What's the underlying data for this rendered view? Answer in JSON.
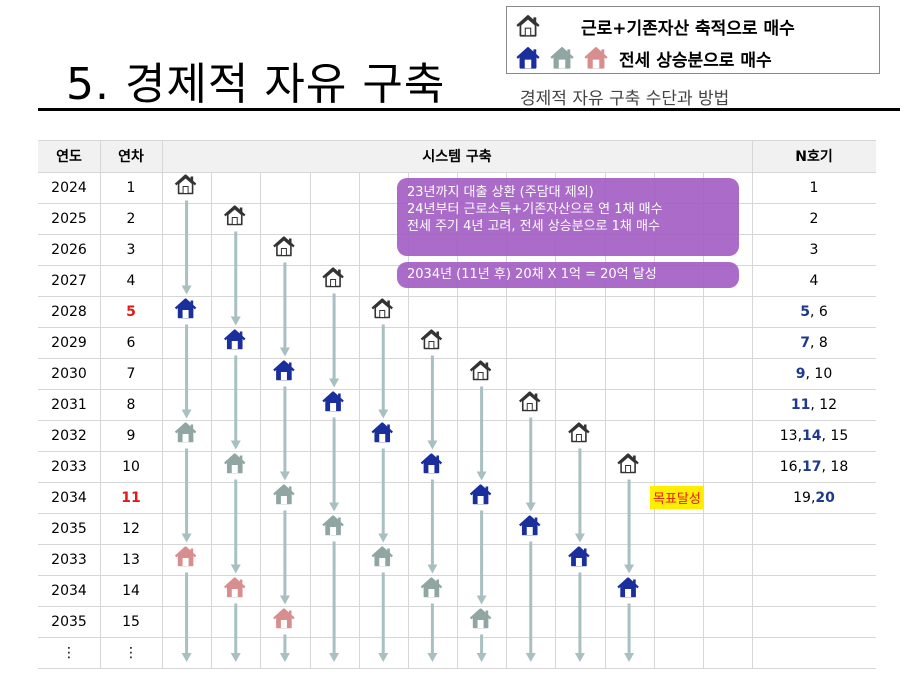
{
  "title": "5. 경제적 자유 구축",
  "subtitle": "경제적 자유 구축 수단과 방법",
  "legend": {
    "row1_text": "근로+기존자산 축적으로 매수",
    "row2_text": "전세 상승분으로 매수",
    "row1_icons": [
      "house-outline-icon"
    ],
    "row2_icons": [
      "house-blue-icon",
      "house-gray-icon",
      "house-pink-icon"
    ]
  },
  "headers": {
    "year": "연도",
    "seq": "연차",
    "system": "시스템 구축",
    "n": "N호기"
  },
  "rows": [
    {
      "year": "2024",
      "seq": "1",
      "n_pre": "",
      "n_bold": "",
      "n_post": "1"
    },
    {
      "year": "2025",
      "seq": "2",
      "n_pre": "",
      "n_bold": "",
      "n_post": "2"
    },
    {
      "year": "2026",
      "seq": "3",
      "n_pre": "",
      "n_bold": "",
      "n_post": "3"
    },
    {
      "year": "2027",
      "seq": "4",
      "n_pre": "",
      "n_bold": "",
      "n_post": "4"
    },
    {
      "year": "2028",
      "seq": "5",
      "n_pre": "",
      "n_bold": "5",
      "n_post": ", 6"
    },
    {
      "year": "2029",
      "seq": "6",
      "n_pre": "",
      "n_bold": "7",
      "n_post": ", 8"
    },
    {
      "year": "2030",
      "seq": "7",
      "n_pre": "",
      "n_bold": "9",
      "n_post": ", 10"
    },
    {
      "year": "2031",
      "seq": "8",
      "n_pre": "",
      "n_bold": "11",
      "n_post": ", 12"
    },
    {
      "year": "2032",
      "seq": "9",
      "n_pre": "13, ",
      "n_bold": "14",
      "n_post": ", 15"
    },
    {
      "year": "2033",
      "seq": "10",
      "n_pre": "16, ",
      "n_bold": "17",
      "n_post": ", 18"
    },
    {
      "year": "2034",
      "seq": "11",
      "n_pre": "19, ",
      "n_bold": "20",
      "n_post": ""
    },
    {
      "year": "2035",
      "seq": "12",
      "n_pre": "",
      "n_bold": "",
      "n_post": ""
    },
    {
      "year": "2033",
      "seq": "13",
      "n_pre": "",
      "n_bold": "",
      "n_post": ""
    },
    {
      "year": "2034",
      "seq": "14",
      "n_pre": "",
      "n_bold": "",
      "n_post": ""
    },
    {
      "year": "2035",
      "seq": "15",
      "n_pre": "",
      "n_bold": "",
      "n_post": ""
    },
    {
      "year": "⋮",
      "seq": "⋮",
      "n_pre": "",
      "n_bold": "",
      "n_post": ""
    }
  ],
  "highlight_seq_rows": [
    4,
    10
  ],
  "bubble1_lines": [
    "23년까지 대출 상환 (주담대 제외)",
    "24년부터 근로소득+기존자산으로 연 1채 매수",
    "전세 주기 4년 고려, 전세 상승분으로 1채 매수"
  ],
  "bubble2_text": "2034년 (11년  후) 20채 X 1억 = 20억 달성",
  "goal_text": "목표달성",
  "colors": {
    "blue_house": "#1a2e9c",
    "gray_house": "#8fa6a3",
    "pink_house": "#d88e8e",
    "arrow": "#a9c0c2",
    "bubble": "#a45fc4"
  },
  "houses": [
    {
      "col": 0,
      "start_row": 0,
      "types": [
        "outline",
        "blue",
        "gray",
        "pink"
      ]
    },
    {
      "col": 1,
      "start_row": 1,
      "types": [
        "outline",
        "blue",
        "gray",
        "pink"
      ]
    },
    {
      "col": 2,
      "start_row": 2,
      "types": [
        "outline",
        "blue",
        "gray",
        "pink"
      ]
    },
    {
      "col": 3,
      "start_row": 3,
      "types": [
        "outline",
        "blue",
        "gray"
      ]
    },
    {
      "col": 4,
      "start_row": 4,
      "types": [
        "outline",
        "blue",
        "gray"
      ]
    },
    {
      "col": 5,
      "start_row": 5,
      "types": [
        "outline",
        "blue",
        "gray"
      ]
    },
    {
      "col": 6,
      "start_row": 6,
      "types": [
        "outline",
        "blue",
        "gray"
      ]
    },
    {
      "col": 7,
      "start_row": 7,
      "types": [
        "outline",
        "blue"
      ]
    },
    {
      "col": 8,
      "start_row": 8,
      "types": [
        "outline",
        "blue"
      ]
    },
    {
      "col": 9,
      "start_row": 9,
      "types": [
        "outline",
        "blue"
      ]
    }
  ]
}
